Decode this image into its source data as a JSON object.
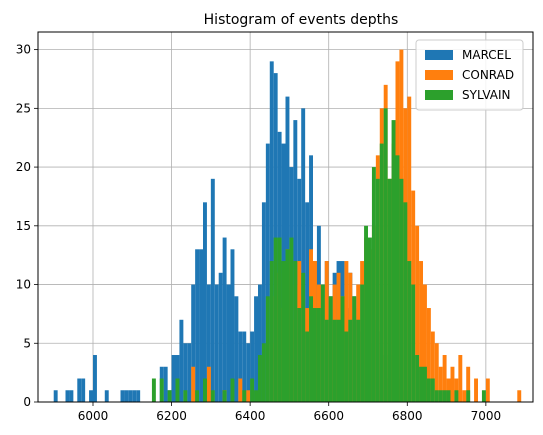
{
  "chart_data": {
    "type": "bar",
    "title": "Histogram of events depths",
    "xlabel": "",
    "ylabel": "",
    "xlim": [
      5860,
      7120
    ],
    "ylim": [
      0,
      31.5
    ],
    "xticks": [
      6000,
      6200,
      6400,
      6600,
      6800,
      7000
    ],
    "yticks": [
      0,
      5,
      10,
      15,
      20,
      25,
      30
    ],
    "grid": true,
    "legend_position": "top-right",
    "bin_width": 10,
    "series": [
      {
        "name": "MARCEL",
        "color": "#1f77b4",
        "bins": [
          [
            5900,
            1
          ],
          [
            5930,
            1
          ],
          [
            5940,
            1
          ],
          [
            5960,
            2
          ],
          [
            5970,
            2
          ],
          [
            5990,
            1
          ],
          [
            6000,
            4
          ],
          [
            6030,
            1
          ],
          [
            6070,
            1
          ],
          [
            6080,
            1
          ],
          [
            6090,
            1
          ],
          [
            6100,
            1
          ],
          [
            6110,
            1
          ],
          [
            6170,
            3
          ],
          [
            6180,
            3
          ],
          [
            6190,
            1
          ],
          [
            6200,
            4
          ],
          [
            6210,
            4
          ],
          [
            6220,
            7
          ],
          [
            6230,
            5
          ],
          [
            6240,
            5
          ],
          [
            6250,
            10
          ],
          [
            6260,
            13
          ],
          [
            6270,
            13
          ],
          [
            6280,
            17
          ],
          [
            6290,
            10
          ],
          [
            6300,
            19
          ],
          [
            6310,
            10
          ],
          [
            6320,
            11
          ],
          [
            6330,
            14
          ],
          [
            6340,
            10
          ],
          [
            6350,
            13
          ],
          [
            6360,
            9
          ],
          [
            6370,
            6
          ],
          [
            6380,
            6
          ],
          [
            6390,
            5
          ],
          [
            6400,
            6
          ],
          [
            6410,
            9
          ],
          [
            6420,
            10
          ],
          [
            6430,
            17
          ],
          [
            6440,
            22
          ],
          [
            6450,
            29
          ],
          [
            6460,
            28
          ],
          [
            6470,
            23
          ],
          [
            6480,
            22
          ],
          [
            6490,
            26
          ],
          [
            6500,
            20
          ],
          [
            6510,
            24
          ],
          [
            6520,
            19
          ],
          [
            6530,
            25
          ],
          [
            6540,
            17
          ],
          [
            6550,
            21
          ],
          [
            6560,
            12
          ],
          [
            6570,
            15
          ],
          [
            6580,
            10
          ],
          [
            6590,
            12
          ],
          [
            6600,
            9
          ],
          [
            6610,
            11
          ],
          [
            6620,
            12
          ],
          [
            6630,
            12
          ],
          [
            6640,
            8
          ],
          [
            6650,
            11
          ],
          [
            6660,
            9
          ],
          [
            6670,
            7
          ],
          [
            6680,
            6
          ],
          [
            6690,
            11
          ],
          [
            6700,
            5
          ],
          [
            6710,
            7
          ],
          [
            6720,
            6
          ],
          [
            6730,
            1
          ],
          [
            6740,
            4
          ],
          [
            6750,
            2
          ],
          [
            6760,
            4
          ],
          [
            6770,
            2
          ],
          [
            6780,
            1
          ],
          [
            6790,
            1
          ]
        ]
      },
      {
        "name": "CONRAD",
        "color": "#ff7f0e",
        "bins": [
          [
            6250,
            3
          ],
          [
            6290,
            3
          ],
          [
            6330,
            1
          ],
          [
            6370,
            2
          ],
          [
            6390,
            1
          ],
          [
            6450,
            5
          ],
          [
            6460,
            9
          ],
          [
            6470,
            11
          ],
          [
            6480,
            8
          ],
          [
            6490,
            13
          ],
          [
            6500,
            7
          ],
          [
            6510,
            10
          ],
          [
            6520,
            12
          ],
          [
            6530,
            9
          ],
          [
            6540,
            8
          ],
          [
            6550,
            13
          ],
          [
            6560,
            12
          ],
          [
            6570,
            10
          ],
          [
            6580,
            9
          ],
          [
            6590,
            12
          ],
          [
            6600,
            7
          ],
          [
            6610,
            10
          ],
          [
            6620,
            11
          ],
          [
            6630,
            9
          ],
          [
            6640,
            12
          ],
          [
            6650,
            11
          ],
          [
            6660,
            8
          ],
          [
            6670,
            10
          ],
          [
            6680,
            12
          ],
          [
            6690,
            14
          ],
          [
            6700,
            13
          ],
          [
            6710,
            15
          ],
          [
            6720,
            21
          ],
          [
            6730,
            25
          ],
          [
            6740,
            27
          ],
          [
            6750,
            19
          ],
          [
            6760,
            22
          ],
          [
            6770,
            29
          ],
          [
            6780,
            30
          ],
          [
            6790,
            25
          ],
          [
            6800,
            26
          ],
          [
            6810,
            18
          ],
          [
            6820,
            15
          ],
          [
            6830,
            12
          ],
          [
            6840,
            10
          ],
          [
            6850,
            8
          ],
          [
            6860,
            6
          ],
          [
            6870,
            5
          ],
          [
            6880,
            3
          ],
          [
            6890,
            4
          ],
          [
            6900,
            2
          ],
          [
            6910,
            3
          ],
          [
            6920,
            2
          ],
          [
            6930,
            4
          ],
          [
            6940,
            1
          ],
          [
            6950,
            3
          ],
          [
            6970,
            2
          ],
          [
            7000,
            2
          ],
          [
            7080,
            1
          ]
        ]
      },
      {
        "name": "SYLVAIN",
        "color": "#2ca02c",
        "bins": [
          [
            6150,
            2
          ],
          [
            6170,
            2
          ],
          [
            6190,
            1
          ],
          [
            6210,
            2
          ],
          [
            6230,
            1
          ],
          [
            6260,
            1
          ],
          [
            6280,
            2
          ],
          [
            6300,
            1
          ],
          [
            6330,
            1
          ],
          [
            6350,
            2
          ],
          [
            6380,
            1
          ],
          [
            6400,
            2
          ],
          [
            6410,
            1
          ],
          [
            6420,
            4
          ],
          [
            6430,
            5
          ],
          [
            6440,
            9
          ],
          [
            6450,
            12
          ],
          [
            6460,
            14
          ],
          [
            6470,
            14
          ],
          [
            6480,
            12
          ],
          [
            6490,
            13
          ],
          [
            6500,
            14
          ],
          [
            6510,
            12
          ],
          [
            6520,
            8
          ],
          [
            6530,
            11
          ],
          [
            6540,
            6
          ],
          [
            6550,
            9
          ],
          [
            6560,
            8
          ],
          [
            6570,
            8
          ],
          [
            6580,
            10
          ],
          [
            6590,
            7
          ],
          [
            6600,
            9
          ],
          [
            6610,
            7
          ],
          [
            6620,
            7
          ],
          [
            6630,
            9
          ],
          [
            6640,
            6
          ],
          [
            6650,
            7
          ],
          [
            6660,
            9
          ],
          [
            6670,
            7
          ],
          [
            6680,
            10
          ],
          [
            6690,
            15
          ],
          [
            6700,
            14
          ],
          [
            6710,
            20
          ],
          [
            6720,
            19
          ],
          [
            6730,
            22
          ],
          [
            6740,
            25
          ],
          [
            6750,
            19
          ],
          [
            6760,
            24
          ],
          [
            6770,
            21
          ],
          [
            6780,
            19
          ],
          [
            6790,
            17
          ],
          [
            6800,
            12
          ],
          [
            6810,
            10
          ],
          [
            6820,
            4
          ],
          [
            6830,
            3
          ],
          [
            6840,
            3
          ],
          [
            6850,
            2
          ],
          [
            6860,
            2
          ],
          [
            6870,
            1
          ],
          [
            6880,
            1
          ],
          [
            6890,
            1
          ],
          [
            6900,
            1
          ],
          [
            6920,
            1
          ],
          [
            6950,
            1
          ],
          [
            6990,
            1
          ]
        ]
      }
    ]
  }
}
